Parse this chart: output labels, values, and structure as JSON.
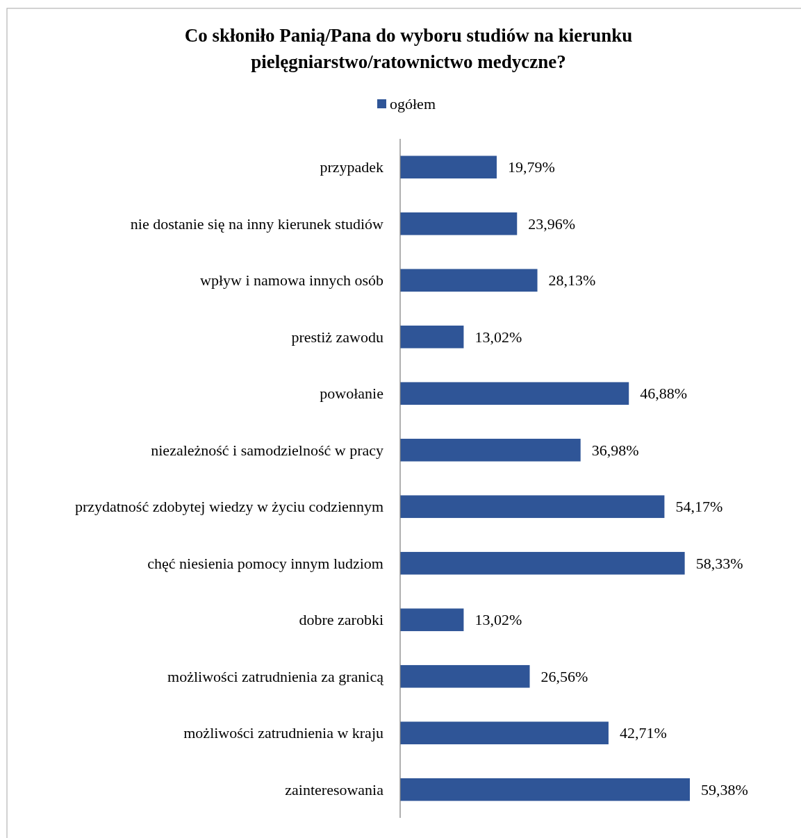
{
  "chart_data": {
    "type": "bar",
    "orientation": "horizontal",
    "title": "Co skłoniło Panią/Pana do wyboru studiów na kierunku\npielęgniarstwo/ratownictwo medyczne?",
    "categories": [
      "przypadek",
      "nie dostanie się na inny kierunek studiów",
      "wpływ i namowa innych osób",
      "prestiż zawodu",
      "powołanie",
      "niezależność i samodzielność w pracy",
      "przydatność zdobytej wiedzy w życiu codziennym",
      "chęć niesienia pomocy innym ludziom",
      "dobre zarobki",
      "możliwości zatrudnienia za granicą",
      "możliwości zatrudnienia w kraju",
      "zainteresowania"
    ],
    "series": [
      {
        "name": "ogółem",
        "color": "#2f5597",
        "values": [
          19.79,
          23.96,
          28.13,
          13.02,
          46.88,
          36.98,
          54.17,
          58.33,
          13.02,
          26.56,
          42.71,
          59.38
        ],
        "value_labels": [
          "19,79%",
          "23,96%",
          "28,13%",
          "13,02%",
          "46,88%",
          "36,98%",
          "54,17%",
          "58,33%",
          "13,02%",
          "26,56%",
          "42,71%",
          "59,38%"
        ]
      }
    ],
    "legend": "top"
  }
}
